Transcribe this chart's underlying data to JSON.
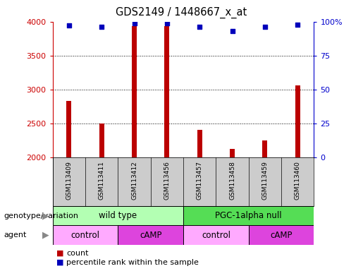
{
  "title": "GDS2149 / 1448667_x_at",
  "samples": [
    "GSM113409",
    "GSM113411",
    "GSM113412",
    "GSM113456",
    "GSM113457",
    "GSM113458",
    "GSM113459",
    "GSM113460"
  ],
  "counts": [
    2830,
    2500,
    3930,
    3930,
    2400,
    2120,
    2250,
    3060
  ],
  "percentile_ranks": [
    97,
    96,
    99,
    99,
    96,
    93,
    96,
    98
  ],
  "ylim_left": [
    2000,
    4000
  ],
  "ylim_right": [
    0,
    100
  ],
  "yticks_left": [
    2000,
    2500,
    3000,
    3500,
    4000
  ],
  "yticks_right": [
    0,
    25,
    50,
    75,
    100
  ],
  "bar_color": "#bb0000",
  "dot_color": "#0000bb",
  "bar_width": 0.15,
  "genotype_groups": [
    {
      "label": "wild type",
      "start": 0,
      "end": 4,
      "color": "#b3ffb3"
    },
    {
      "label": "PGC-1alpha null",
      "start": 4,
      "end": 8,
      "color": "#55dd55"
    }
  ],
  "agent_groups": [
    {
      "label": "control",
      "start": 0,
      "end": 2,
      "color": "#ffaaff"
    },
    {
      "label": "cAMP",
      "start": 2,
      "end": 4,
      "color": "#dd44dd"
    },
    {
      "label": "control",
      "start": 4,
      "end": 6,
      "color": "#ffaaff"
    },
    {
      "label": "cAMP",
      "start": 6,
      "end": 8,
      "color": "#dd44dd"
    }
  ],
  "legend_count_color": "#bb0000",
  "legend_dot_color": "#0000bb",
  "bg_color": "#ffffff",
  "left_tick_color": "#cc0000",
  "right_tick_color": "#0000cc",
  "sample_bg_color": "#cccccc",
  "right_pct_label": "100%"
}
